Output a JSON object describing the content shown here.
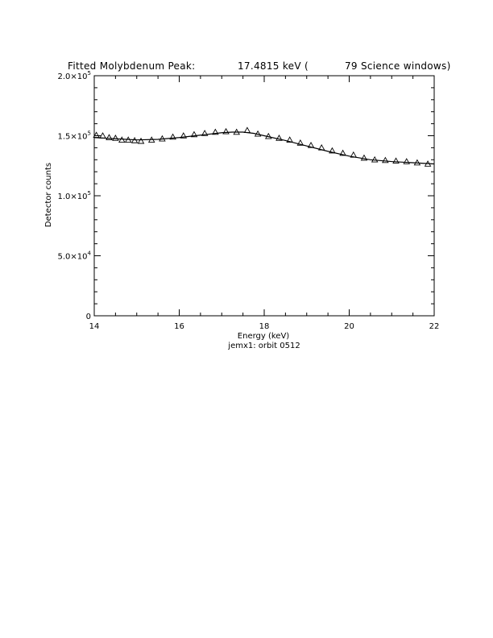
{
  "chart_data": {
    "type": "scatter",
    "title_parts": [
      "Fitted Molybdenum Peak:",
      "17.4815 keV (",
      "79 Science windows)"
    ],
    "xlabel": "Energy (keV)",
    "ylabel": "Detector counts",
    "caption": "jemx1: orbit 0512",
    "xlim": [
      14,
      22
    ],
    "ylim": [
      0,
      200000
    ],
    "x_ticks": [
      14,
      16,
      18,
      20,
      22
    ],
    "x_tick_labels": [
      "14",
      "16",
      "18",
      "20",
      "22"
    ],
    "y_ticks": [
      0,
      50000,
      100000,
      150000,
      200000
    ],
    "y_tick_labels": [
      {
        "mant": "0",
        "exp": ""
      },
      {
        "mant": "5.0×10",
        "exp": "4"
      },
      {
        "mant": "1.0×10",
        "exp": "5"
      },
      {
        "mant": "1.5×10",
        "exp": "5"
      },
      {
        "mant": "2.0×10",
        "exp": "5"
      }
    ],
    "grid": false,
    "series": [
      {
        "kind": "markers",
        "marker": "triangle",
        "x": [
          14.05,
          14.2,
          14.35,
          14.5,
          14.65,
          14.8,
          14.95,
          15.1,
          15.35,
          15.6,
          15.85,
          16.1,
          16.35,
          16.6,
          16.85,
          17.1,
          17.35,
          17.6,
          17.85,
          18.1,
          18.35,
          18.6,
          18.85,
          19.1,
          19.35,
          19.6,
          19.85,
          20.1,
          20.35,
          20.6,
          20.85,
          21.1,
          21.35,
          21.6,
          21.85
        ],
        "y": [
          150500,
          150000,
          148500,
          148000,
          146500,
          146500,
          146000,
          145500,
          146500,
          147500,
          149000,
          150000,
          151000,
          152000,
          153000,
          153500,
          153000,
          154500,
          151500,
          149500,
          148000,
          146500,
          144000,
          142000,
          140000,
          137500,
          135500,
          134000,
          131500,
          130000,
          129500,
          129000,
          128500,
          127500,
          126500
        ]
      },
      {
        "kind": "fit",
        "x": [
          14.0,
          14.5,
          15.0,
          15.5,
          16.0,
          16.5,
          17.0,
          17.25,
          17.5,
          17.75,
          18.0,
          18.5,
          19.0,
          19.5,
          20.0,
          20.5,
          21.0,
          21.5,
          22.0
        ],
        "y": [
          148500,
          147500,
          146500,
          147000,
          148500,
          150500,
          152500,
          153000,
          153000,
          152000,
          150000,
          146000,
          141500,
          137000,
          133000,
          130000,
          128500,
          127500,
          126500
        ]
      }
    ]
  }
}
